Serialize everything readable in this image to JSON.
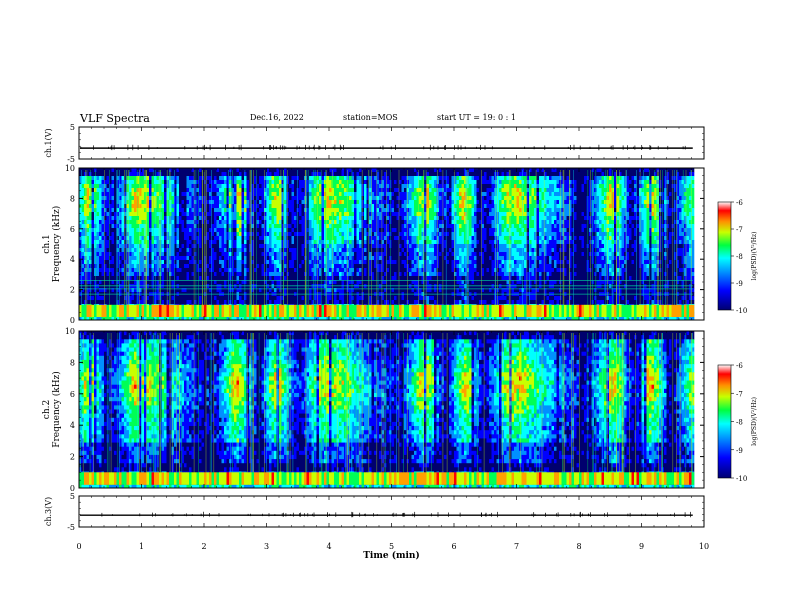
{
  "header": {
    "title": "VLF Spectra",
    "date": "Dec.16, 2022",
    "station": "station=MOS",
    "start": "start  UT =   19: 0  : 1"
  },
  "chart_data": [
    {
      "type": "line",
      "name": "ch1-waveform",
      "ylabel": "ch.1(V)",
      "ylim": [
        -5,
        5
      ],
      "yticks": [
        "5",
        "-5"
      ],
      "baseline": -1.6,
      "xlim": [
        0,
        10
      ]
    },
    {
      "type": "heatmap",
      "name": "ch1-spectrogram",
      "ylabel": "ch.1\nFrequency  (kHz)",
      "ylim": [
        0,
        10
      ],
      "yticks": [
        "0",
        "2",
        "4",
        "6",
        "8",
        "10"
      ],
      "xlim": [
        0,
        10
      ],
      "data_extent_min": 9.82,
      "colorbar": {
        "label": "log(PSD)(V²/Hz)",
        "range": [
          -10,
          -6
        ],
        "ticks": [
          "-6",
          "-7",
          "-8",
          "-9",
          "-10"
        ]
      },
      "horizontal_lines_khz": [
        1.7,
        2.05,
        2.25,
        2.6
      ]
    },
    {
      "type": "heatmap",
      "name": "ch2-spectrogram",
      "ylabel": "ch.2\nFrequency  (kHz)",
      "ylim": [
        0,
        10
      ],
      "yticks": [
        "0",
        "2",
        "4",
        "6",
        "8",
        "10"
      ],
      "xlim": [
        0,
        10
      ],
      "data_extent_min": 9.82,
      "colorbar": {
        "label": "log(PSD)(V²/Hz)",
        "range": [
          -10,
          -6
        ],
        "ticks": [
          "-6",
          "-7",
          "-8",
          "-9",
          "-10"
        ]
      }
    },
    {
      "type": "line",
      "name": "ch3-waveform",
      "ylabel": "ch.3(V)",
      "ylim": [
        -5,
        5
      ],
      "yticks": [
        "5",
        "-5"
      ],
      "baseline": -1.2,
      "xlim": [
        0,
        10
      ],
      "xticks": [
        "0",
        "1",
        "2",
        "3",
        "4",
        "5",
        "6",
        "7",
        "8",
        "9",
        "10"
      ],
      "xlabel": "Time  (min)"
    }
  ],
  "colormap": [
    "#00006e",
    "#0000ff",
    "#0090ff",
    "#00ffff",
    "#00ff55",
    "#c8ff00",
    "#ffa000",
    "#ff0000",
    "#ffffff"
  ]
}
